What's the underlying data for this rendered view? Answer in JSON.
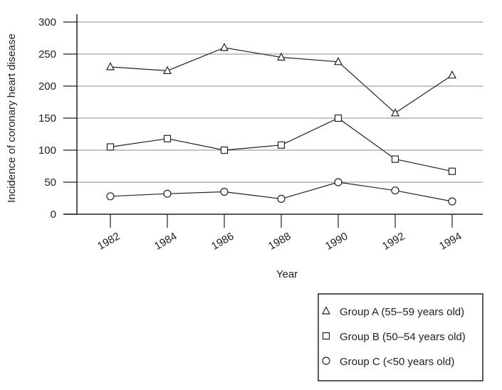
{
  "chart_data": {
    "type": "line",
    "xlabel": "Year",
    "ylabel": "Incidence of coronary heart disease",
    "x": [
      "1982",
      "1984",
      "1986",
      "1988",
      "1990",
      "1992",
      "1994"
    ],
    "ylim": [
      0,
      300
    ],
    "yticks": [
      "0",
      "50",
      "100",
      "150",
      "200",
      "250",
      "300"
    ],
    "grid": "horizontal",
    "legend_position": "bottom-right",
    "series": [
      {
        "name": "Group A (55–59 years old)",
        "marker": "triangle",
        "values": [
          230,
          224,
          260,
          245,
          238,
          158,
          217
        ]
      },
      {
        "name": "Group B (50–54 years old)",
        "marker": "square",
        "values": [
          105,
          118,
          100,
          108,
          150,
          86,
          67
        ]
      },
      {
        "name": "Group C (<50 years old)",
        "marker": "circle",
        "values": [
          28,
          32,
          35,
          24,
          50,
          37,
          20
        ]
      }
    ],
    "colors": {
      "line": "#222222",
      "grid": "#888888"
    }
  }
}
